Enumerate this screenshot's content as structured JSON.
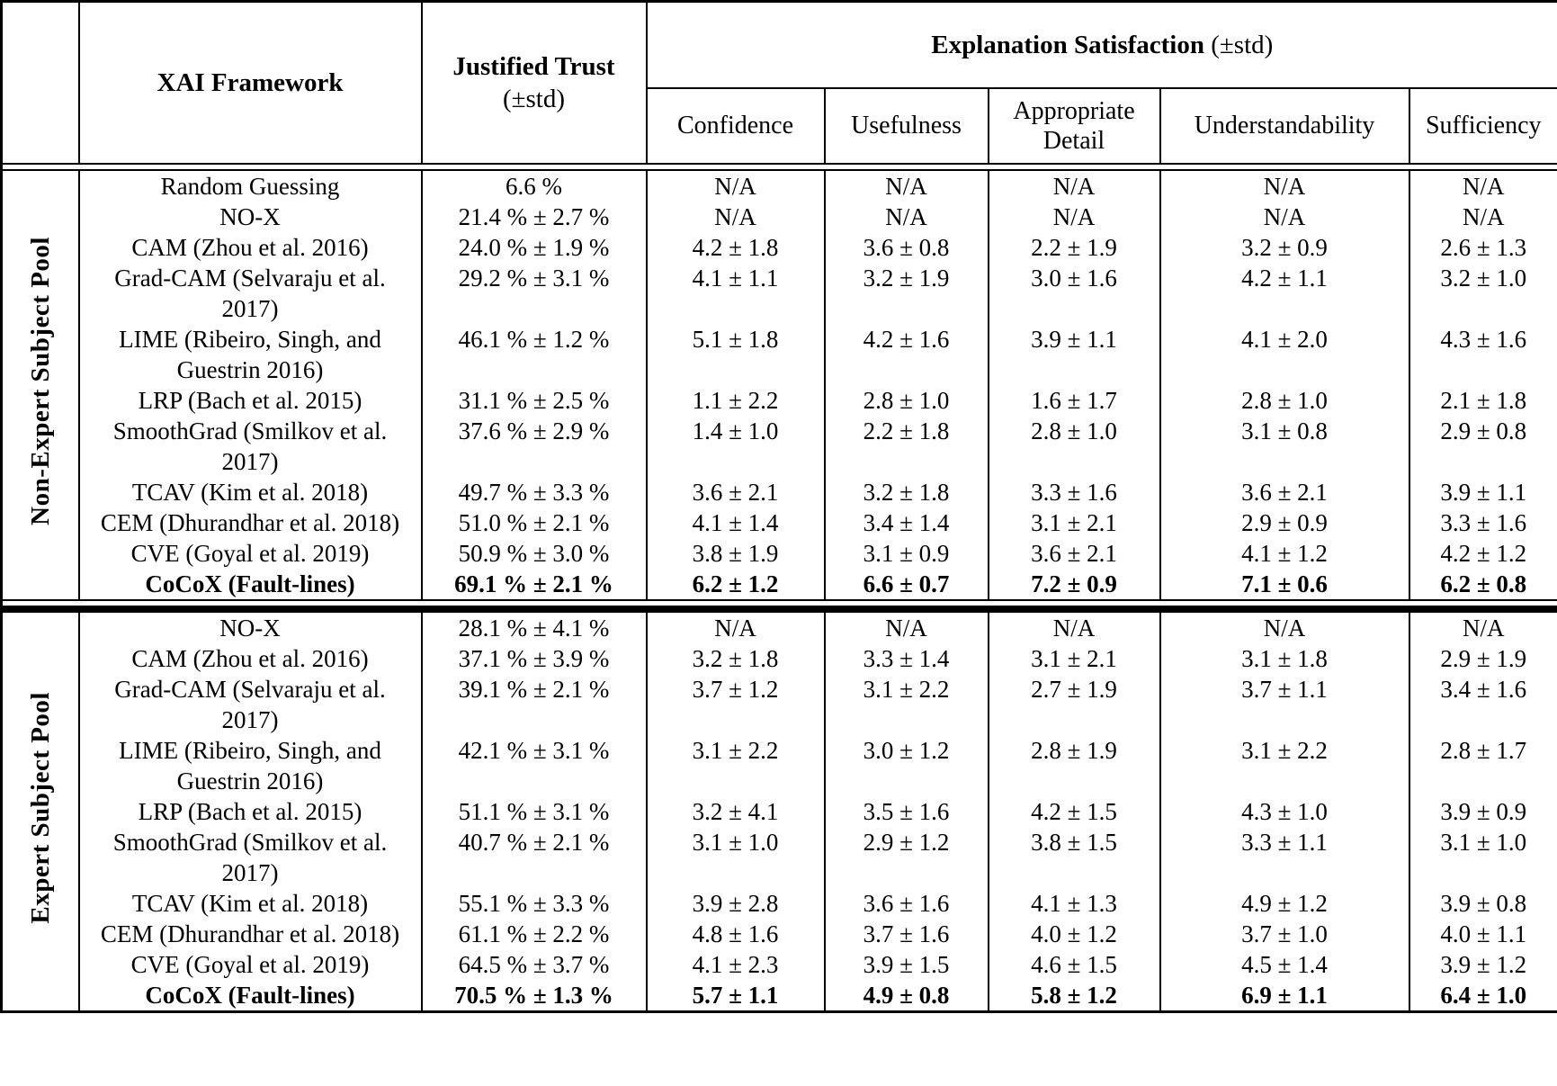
{
  "table": {
    "header": {
      "framework": "XAI Framework",
      "trust_title": "Justified Trust",
      "trust_sub": "(±std)",
      "satisfaction_title": "Explanation Satisfaction",
      "satisfaction_sub": " (±std)",
      "subcolumns": [
        "Confidence",
        "Usefulness",
        "Appropriate Detail",
        "Understandability",
        "Sufficiency"
      ]
    },
    "sections": [
      {
        "pool": "Non-Expert Subject Pool",
        "rows": [
          {
            "framework": "Random Guessing",
            "trust": "6.6 %",
            "bold": false,
            "vals": [
              "N/A",
              "N/A",
              "N/A",
              "N/A",
              "N/A"
            ]
          },
          {
            "framework": "NO-X",
            "trust": "21.4 % ± 2.7 %",
            "bold": false,
            "vals": [
              "N/A",
              "N/A",
              "N/A",
              "N/A",
              "N/A"
            ]
          },
          {
            "framework": "CAM (Zhou et al. 2016)",
            "trust": "24.0 % ± 1.9 %",
            "bold": false,
            "vals": [
              "4.2 ± 1.8",
              "3.6 ± 0.8",
              "2.2 ± 1.9",
              "3.2 ± 0.9",
              "2.6 ± 1.3"
            ]
          },
          {
            "framework": "Grad-CAM (Selvaraju et al. 2017)",
            "trust": "29.2 % ± 3.1 %",
            "bold": false,
            "vals": [
              "4.1 ± 1.1",
              "3.2 ± 1.9",
              "3.0 ± 1.6",
              "4.2 ± 1.1",
              "3.2 ± 1.0"
            ]
          },
          {
            "framework": "LIME (Ribeiro, Singh, and Guestrin 2016)",
            "trust": "46.1 % ± 1.2 %",
            "bold": false,
            "vals": [
              "5.1 ± 1.8",
              "4.2 ± 1.6",
              "3.9 ± 1.1",
              "4.1 ± 2.0",
              "4.3 ± 1.6"
            ]
          },
          {
            "framework": "LRP (Bach et al. 2015)",
            "trust": "31.1 % ± 2.5 %",
            "bold": false,
            "vals": [
              "1.1 ± 2.2",
              "2.8 ± 1.0",
              "1.6 ± 1.7",
              "2.8 ± 1.0",
              "2.1 ± 1.8"
            ]
          },
          {
            "framework": "SmoothGrad (Smilkov et al. 2017)",
            "trust": "37.6 % ± 2.9 %",
            "bold": false,
            "vals": [
              "1.4 ± 1.0",
              "2.2 ± 1.8",
              "2.8 ± 1.0",
              "3.1 ± 0.8",
              "2.9 ± 0.8"
            ]
          },
          {
            "framework": "TCAV (Kim et al. 2018)",
            "trust": "49.7 % ± 3.3 %",
            "bold": false,
            "vals": [
              "3.6 ± 2.1",
              "3.2 ± 1.8",
              "3.3 ± 1.6",
              "3.6 ± 2.1",
              "3.9 ± 1.1"
            ]
          },
          {
            "framework": "CEM (Dhurandhar et al. 2018)",
            "trust": "51.0 % ± 2.1 %",
            "bold": false,
            "vals": [
              "4.1 ± 1.4",
              "3.4 ± 1.4",
              "3.1 ± 2.1",
              "2.9 ± 0.9",
              "3.3 ± 1.6"
            ]
          },
          {
            "framework": "CVE (Goyal et al. 2019)",
            "trust": "50.9 % ± 3.0 %",
            "bold": false,
            "vals": [
              "3.8 ± 1.9",
              "3.1 ± 0.9",
              "3.6 ± 2.1",
              "4.1 ± 1.2",
              "4.2 ± 1.2"
            ]
          },
          {
            "framework": "CoCoX (Fault-lines)",
            "trust": "69.1 % ± 2.1 %",
            "bold": true,
            "vals": [
              "6.2 ± 1.2",
              "6.6 ± 0.7",
              "7.2 ± 0.9",
              "7.1 ± 0.6",
              "6.2 ± 0.8"
            ]
          }
        ]
      },
      {
        "pool": "Expert Subject Pool",
        "rows": [
          {
            "framework": "NO-X",
            "trust": "28.1 % ± 4.1 %",
            "bold": false,
            "vals": [
              "N/A",
              "N/A",
              "N/A",
              "N/A",
              "N/A"
            ]
          },
          {
            "framework": "CAM (Zhou et al. 2016)",
            "trust": "37.1 % ± 3.9 %",
            "bold": false,
            "vals": [
              "3.2 ± 1.8",
              "3.3 ± 1.4",
              "3.1 ± 2.1",
              "3.1 ± 1.8",
              "2.9 ± 1.9"
            ]
          },
          {
            "framework": "Grad-CAM (Selvaraju et al. 2017)",
            "trust": "39.1 % ± 2.1 %",
            "bold": false,
            "vals": [
              "3.7 ± 1.2",
              "3.1 ± 2.2",
              "2.7 ± 1.9",
              "3.7 ± 1.1",
              "3.4 ± 1.6"
            ]
          },
          {
            "framework": "LIME (Ribeiro, Singh, and Guestrin 2016)",
            "trust": "42.1 % ± 3.1 %",
            "bold": false,
            "vals": [
              "3.1 ± 2.2",
              "3.0 ± 1.2",
              "2.8 ± 1.9",
              "3.1 ± 2.2",
              "2.8 ± 1.7"
            ]
          },
          {
            "framework": "LRP (Bach et al. 2015)",
            "trust": "51.1 % ± 3.1 %",
            "bold": false,
            "vals": [
              "3.2 ± 4.1",
              "3.5 ± 1.6",
              "4.2 ± 1.5",
              "4.3 ± 1.0",
              "3.9 ± 0.9"
            ]
          },
          {
            "framework": "SmoothGrad (Smilkov et al. 2017)",
            "trust": "40.7 % ± 2.1 %",
            "bold": false,
            "vals": [
              "3.1 ± 1.0",
              "2.9 ± 1.2",
              "3.8 ± 1.5",
              "3.3 ± 1.1",
              "3.1 ± 1.0"
            ]
          },
          {
            "framework": "TCAV (Kim et al. 2018)",
            "trust": "55.1 % ± 3.3 %",
            "bold": false,
            "vals": [
              "3.9 ± 2.8",
              "3.6 ± 1.6",
              "4.1 ± 1.3",
              "4.9 ± 1.2",
              "3.9 ± 0.8"
            ]
          },
          {
            "framework": "CEM (Dhurandhar et al. 2018)",
            "trust": "61.1 % ± 2.2 %",
            "bold": false,
            "vals": [
              "4.8 ± 1.6",
              "3.7 ± 1.6",
              "4.0 ± 1.2",
              "3.7 ± 1.0",
              "4.0 ± 1.1"
            ]
          },
          {
            "framework": "CVE (Goyal et al. 2019)",
            "trust": "64.5 % ± 3.7 %",
            "bold": false,
            "vals": [
              "4.1 ± 2.3",
              "3.9 ± 1.5",
              "4.6 ± 1.5",
              "4.5 ± 1.4",
              "3.9 ± 1.2"
            ]
          },
          {
            "framework": "CoCoX (Fault-lines)",
            "trust": "70.5 % ± 1.3 %",
            "bold": true,
            "vals": [
              "5.7 ± 1.1",
              "4.9 ± 0.8",
              "5.8 ± 1.2",
              "6.9 ± 1.1",
              "6.4 ± 1.0"
            ]
          }
        ]
      }
    ]
  }
}
